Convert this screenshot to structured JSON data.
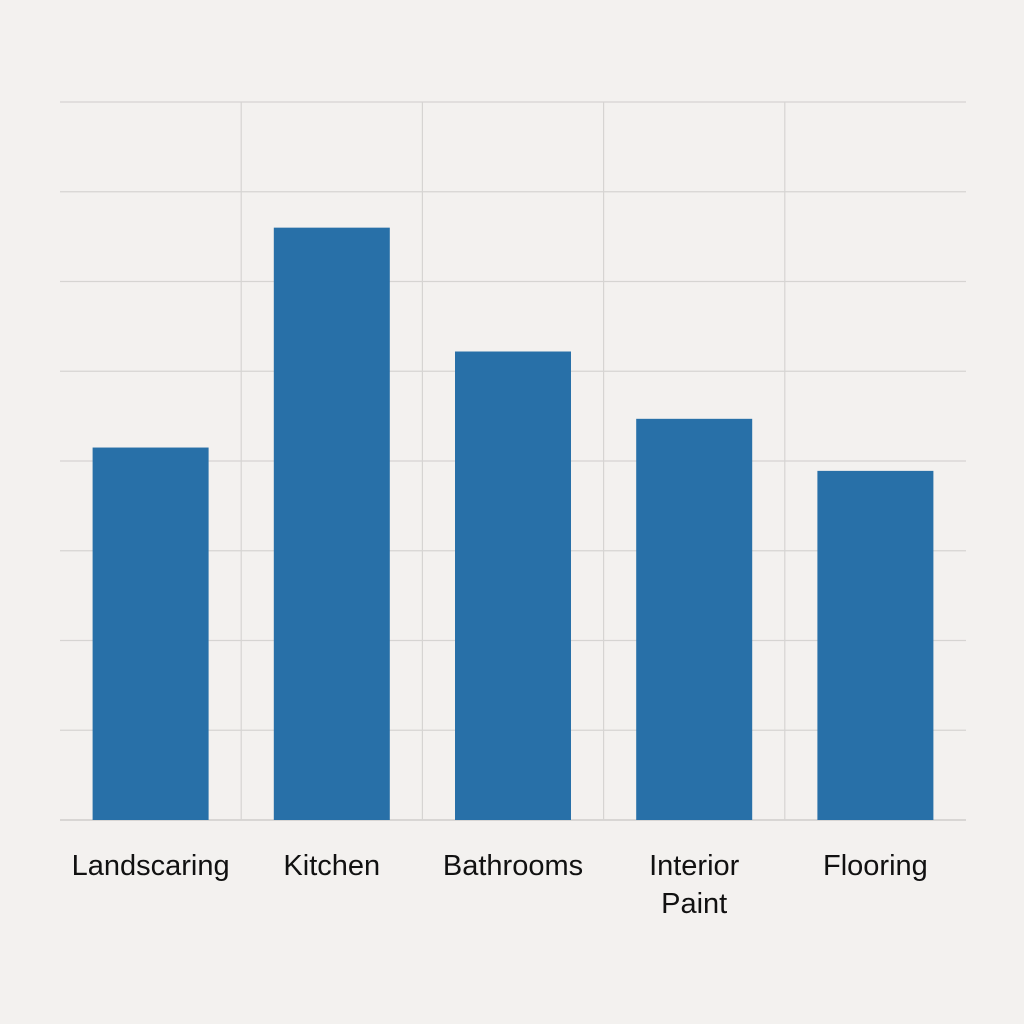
{
  "chart_data": {
    "type": "bar",
    "categories": [
      "Landscaring",
      "Kitchen",
      "Bathrooms",
      "Interior Paint",
      "Flooring"
    ],
    "category_lines": [
      [
        "Landscaring"
      ],
      [
        "Kitchen"
      ],
      [
        "Bathrooms"
      ],
      [
        "Interior",
        "Paint"
      ],
      [
        "Flooring"
      ]
    ],
    "values": [
      4.15,
      6.6,
      5.22,
      4.47,
      3.89
    ],
    "title": "",
    "xlabel": "",
    "ylabel": "",
    "ylim": [
      0,
      8
    ],
    "grid": true,
    "legend": "none",
    "colors": {
      "bar": "#2870a8",
      "grid": "#d6d4d2",
      "background": "#f3f1ef",
      "text": "#111111"
    }
  }
}
